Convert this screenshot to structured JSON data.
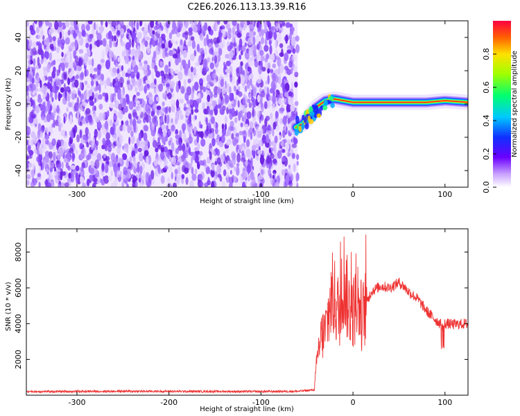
{
  "title": "C2E6.2026.113.13.39.R16",
  "chart_data": [
    {
      "type": "heatmap",
      "title": "C2E6.2026.113.13.39.R16",
      "xlabel": "Height of straight line (km)",
      "ylabel": "Frequency (Hz)",
      "xlim": [
        -355,
        125
      ],
      "ylim": [
        -50,
        50
      ],
      "x_ticks": [
        -300,
        -200,
        -100,
        0,
        100
      ],
      "y_ticks": [
        -40,
        -20,
        0,
        20,
        40
      ],
      "noise_region_x": [
        -355,
        -60
      ],
      "signal_track": {
        "x": [
          -62,
          -55,
          -48,
          -40,
          -30,
          -20,
          -10,
          0,
          20,
          40,
          60,
          80,
          100,
          125
        ],
        "y": [
          -14,
          -12,
          -8,
          -2,
          2,
          3,
          2,
          1,
          1,
          1,
          1,
          1,
          2,
          1
        ]
      },
      "colorbar": {
        "label": "Normalized spectral amplitude",
        "range": [
          0,
          1
        ],
        "ticks": [
          "0.0",
          "0.2",
          "0.4",
          "0.6",
          "0.8"
        ]
      },
      "grid": false
    },
    {
      "type": "line",
      "xlabel": "Height of straight line (km)",
      "ylabel": "SNR (10 * v/v)",
      "xlim": [
        -355,
        125
      ],
      "ylim": [
        0,
        9300
      ],
      "x_ticks": [
        -300,
        -200,
        -100,
        0,
        100
      ],
      "y_ticks": [
        2000,
        4000,
        6000,
        8000
      ],
      "color": "#ee3333",
      "series": [
        {
          "x": [
            -355,
            -300,
            -250,
            -200,
            -150,
            -100,
            -60,
            -42,
            -38,
            -35,
            -30,
            -25,
            -22,
            -20,
            -15,
            -10,
            -5,
            0,
            5,
            10,
            15,
            20,
            30,
            40,
            50,
            55,
            60,
            70,
            80,
            90,
            97,
            100,
            110,
            125
          ],
          "y": [
            200,
            210,
            220,
            215,
            210,
            205,
            220,
            300,
            2500,
            3200,
            3600,
            5000,
            5600,
            5300,
            4600,
            6600,
            5000,
            4600,
            5400,
            4300,
            5200,
            5800,
            6100,
            6000,
            6300,
            6100,
            5800,
            5400,
            4700,
            4200,
            3900,
            4000,
            3950,
            4000
          ]
        }
      ],
      "grid": false
    }
  ]
}
